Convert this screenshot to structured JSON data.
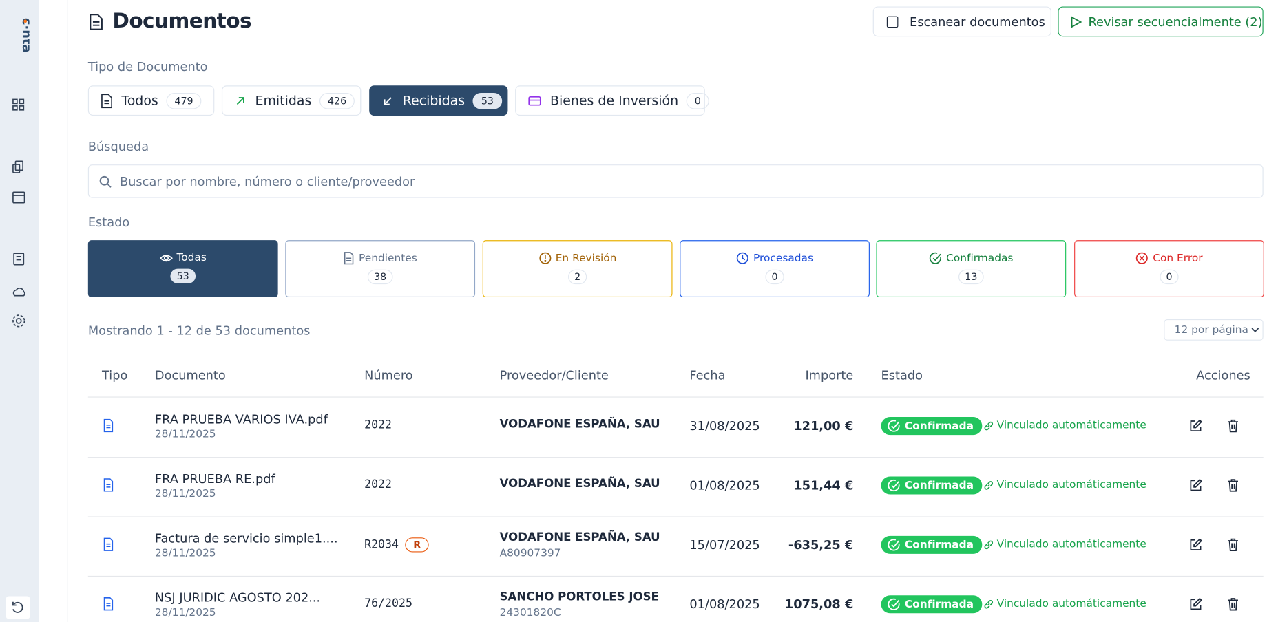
{
  "header": {
    "title": "Documentos",
    "scan_button": "Escanear documentos",
    "review_button": "Revisar secuencialmente (2)"
  },
  "filters": {
    "label": "Tipo de Documento",
    "tabs": [
      {
        "label": "Todos",
        "count": 479
      },
      {
        "label": "Emitidas",
        "count": 426
      },
      {
        "label": "Recibidas",
        "count": 53
      },
      {
        "label": "Bienes de Inversión",
        "count": 0
      }
    ]
  },
  "search": {
    "label": "Búsqueda",
    "placeholder": "Buscar por nombre, número o cliente/proveedor"
  },
  "status": {
    "label": "Estado",
    "cards": [
      {
        "label": "Todas",
        "count": 53
      },
      {
        "label": "Pendientes",
        "count": 38
      },
      {
        "label": "En Revisión",
        "count": 2
      },
      {
        "label": "Procesadas",
        "count": 0
      },
      {
        "label": "Confirmadas",
        "count": 13
      },
      {
        "label": "Con Error",
        "count": 0
      }
    ]
  },
  "summary": "Mostrando 1 - 12 de 53 documentos",
  "page_size": "12 por página",
  "table": {
    "columns": [
      "Tipo",
      "Documento",
      "Número",
      "Proveedor/Cliente",
      "Fecha",
      "Importe",
      "Estado",
      "Acciones"
    ],
    "rows": [
      {
        "document": "FRA PRUEBA VARIOS IVA.pdf",
        "date": "28/11/2025",
        "number": "2022",
        "party": "VODAFONE ESPAÑA, SAU",
        "fecha": "31/08/2025",
        "importe": "121,00 €",
        "estado": "Confirmada",
        "link": "Vinculado automáticamente"
      },
      {
        "document": "FRA PRUEBA RE.pdf",
        "date": "28/11/2025",
        "number": "2022",
        "party": "VODAFONE ESPAÑA, SAU",
        "fecha": "01/08/2025",
        "importe": "151,44 €",
        "estado": "Confirmada",
        "link": "Vinculado automáticamente"
      },
      {
        "document": "Factura de servicio simple1....",
        "date": "28/11/2025",
        "number": "R2034",
        "badge": "R",
        "party": "VODAFONE ESPAÑA, SAU",
        "party_id": "A80907397",
        "fecha": "15/07/2025",
        "importe": "-635,25 €",
        "estado": "Confirmada",
        "link": "Vinculado automáticamente"
      },
      {
        "document": "NSJ JURIDIC AGOSTO 202...",
        "date": "28/11/2025",
        "number": "76/2025",
        "party": "SANCHO PORTOLES JOSE",
        "party_id": "24301820C",
        "fecha": "01/08/2025",
        "importe": "1075,08 €",
        "estado": "Confirmada",
        "link": "Vinculado automáticamente"
      }
    ]
  }
}
